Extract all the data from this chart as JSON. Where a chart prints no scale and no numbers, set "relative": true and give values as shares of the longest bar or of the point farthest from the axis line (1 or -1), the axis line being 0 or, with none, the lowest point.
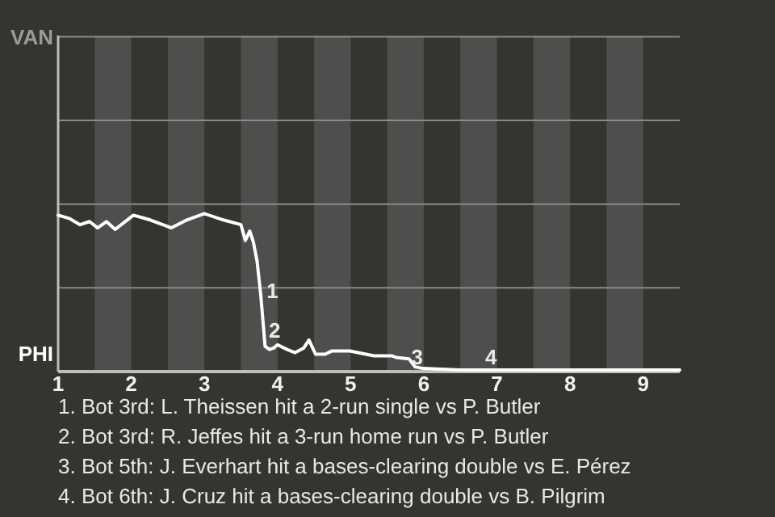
{
  "chart_data": {
    "type": "line",
    "relative": true,
    "xlim": [
      1,
      9.5
    ],
    "xticks": [
      1,
      2,
      3,
      4,
      5,
      6,
      7,
      8,
      9
    ],
    "marker": "none",
    "line_style": "solid",
    "ref_lines": [
      {
        "axis": "y",
        "value": 0.53,
        "color": "#8a8a8a"
      },
      {
        "axis": "y",
        "value": 1.06,
        "color": "#8a8a8a"
      },
      {
        "axis": "y",
        "value": 1.59,
        "color": "#8a8a8a"
      },
      {
        "axis": "y",
        "value": 2.12,
        "color": "#8a8a8a"
      }
    ],
    "bands": [
      {
        "axis": "x",
        "from": 1.5,
        "to": 2,
        "color": "#4f4e4c"
      },
      {
        "axis": "x",
        "from": 2.5,
        "to": 3,
        "color": "#4f4e4c"
      },
      {
        "axis": "x",
        "from": 3.5,
        "to": 4,
        "color": "#4f4e4c"
      },
      {
        "axis": "x",
        "from": 4.5,
        "to": 5,
        "color": "#4f4e4c"
      },
      {
        "axis": "x",
        "from": 5.5,
        "to": 6,
        "color": "#4f4e4c"
      },
      {
        "axis": "x",
        "from": 6.5,
        "to": 7,
        "color": "#4f4e4c"
      },
      {
        "axis": "x",
        "from": 7.5,
        "to": 8,
        "color": "#4f4e4c"
      },
      {
        "axis": "x",
        "from": 8.5,
        "to": 9,
        "color": "#4f4e4c"
      }
    ],
    "series": [
      {
        "color": "#ffffff",
        "x": [
          1,
          1.15,
          1.3,
          1.43,
          1.54,
          1.66,
          1.78,
          2.03,
          2.26,
          2.55,
          2.76,
          3,
          3.26,
          3.5,
          3.56,
          3.62,
          3.67,
          3.72,
          3.77,
          3.83,
          3.89,
          3.95,
          4,
          4.13,
          4.24,
          4.36,
          4.43,
          4.52,
          4.65,
          4.74,
          4.99,
          5.32,
          5.56,
          5.62,
          5.8,
          5.88,
          5.99,
          6.5,
          6.52,
          9.5
        ],
        "values": [
          0.99,
          0.97,
          0.93,
          0.95,
          0.91,
          0.95,
          0.9,
          0.99,
          0.96,
          0.91,
          0.96,
          1,
          0.96,
          0.93,
          0.83,
          0.89,
          0.82,
          0.7,
          0.49,
          0.16,
          0.14,
          0.15,
          0.17,
          0.14,
          0.12,
          0.15,
          0.2,
          0.11,
          0.11,
          0.13,
          0.13,
          0.1,
          0.1,
          0.09,
          0.08,
          0.03,
          0.02,
          0.01,
          0.01,
          0.01
        ]
      }
    ],
    "annotations": [
      "VAN",
      "PHI",
      {
        "text": "1",
        "x": 3.93,
        "y": 0.5
      },
      {
        "text": "2",
        "x": 3.96,
        "y": 0.25
      },
      {
        "text": "3",
        "x": 5.91,
        "y": 0.08
      },
      {
        "text": "4",
        "x": 6.92,
        "y": 0.08
      },
      "1. Bot 3rd: L. Theissen hit a 2-run single vs P. Butler",
      "2. Bot 3rd: R. Jeffes hit a 3-run home run vs P. Butler",
      "3. Bot 5th: J. Everhart hit a bases-clearing double vs E. Pérez",
      "4. Bot 6th: J. Cruz hit a bases-clearing double vs B. Pilgrim"
    ]
  }
}
